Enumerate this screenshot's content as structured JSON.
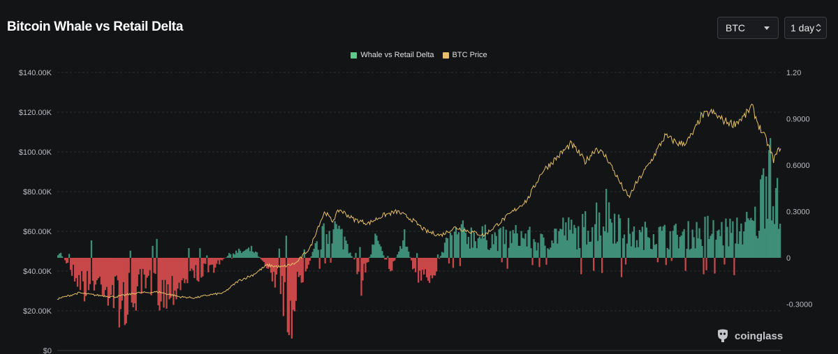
{
  "header": {
    "title": "Bitcoin Whale vs Retail Delta"
  },
  "controls": {
    "coin_select": {
      "value": "BTC"
    },
    "interval_select": {
      "value": "1 day"
    }
  },
  "legend": [
    {
      "label": "Whale vs Retail Delta",
      "color": "#5ec98a"
    },
    {
      "label": "BTC Price",
      "color": "#e6c068"
    }
  ],
  "watermark": {
    "text": "coinglass",
    "icon": "coinglass-logo-icon"
  },
  "colors": {
    "positive_bar": "#3f8f78",
    "negative_bar": "#c8484a",
    "price_line": "#e6c068",
    "grid": "#2c2e32"
  },
  "chart_data": {
    "type": "bar",
    "left_axis": {
      "ticks": [
        "$0",
        "$20.00K",
        "$40.00K",
        "$60.00K",
        "$80.00K",
        "$100.00K",
        "$120.00K",
        "$140.00K"
      ],
      "values": [
        0,
        20000,
        40000,
        60000,
        80000,
        100000,
        120000,
        140000
      ],
      "range": [
        0,
        140000
      ]
    },
    "right_axis": {
      "ticks": [
        "-0.3000",
        "0",
        "0.3000",
        "0.6000",
        "0.9000",
        "1.20"
      ],
      "values": [
        -0.3,
        0,
        0.3,
        0.6,
        0.9,
        1.2
      ],
      "range": [
        -0.6,
        1.2
      ]
    },
    "grid": true,
    "legend_placement": "top-center",
    "series": [
      {
        "name": "Whale vs Retail Delta",
        "type": "bar",
        "axis": "right",
        "keypoints": [
          [
            0,
            0.05
          ],
          [
            0.02,
            -0.08
          ],
          [
            0.04,
            -0.2
          ],
          [
            0.06,
            -0.15
          ],
          [
            0.09,
            -0.3
          ],
          [
            0.12,
            -0.18
          ],
          [
            0.15,
            -0.22
          ],
          [
            0.18,
            -0.12
          ],
          [
            0.21,
            -0.08
          ],
          [
            0.24,
            0.03
          ],
          [
            0.27,
            0.05
          ],
          [
            0.29,
            -0.05
          ],
          [
            0.31,
            -0.2
          ],
          [
            0.32,
            -0.38
          ],
          [
            0.34,
            -0.1
          ],
          [
            0.36,
            0.1
          ],
          [
            0.38,
            0.2
          ],
          [
            0.4,
            0.1
          ],
          [
            0.42,
            -0.15
          ],
          [
            0.44,
            0.12
          ],
          [
            0.46,
            -0.08
          ],
          [
            0.48,
            0.12
          ],
          [
            0.5,
            -0.18
          ],
          [
            0.52,
            -0.1
          ],
          [
            0.54,
            0.12
          ],
          [
            0.56,
            0.15
          ],
          [
            0.58,
            0.14
          ],
          [
            0.61,
            0.12
          ],
          [
            0.64,
            0.14
          ],
          [
            0.67,
            0.1
          ],
          [
            0.7,
            0.18
          ],
          [
            0.72,
            0.15
          ],
          [
            0.74,
            0.24
          ],
          [
            0.76,
            0.3
          ],
          [
            0.78,
            0.2
          ],
          [
            0.8,
            0.12
          ],
          [
            0.82,
            0.16
          ],
          [
            0.84,
            0.14
          ],
          [
            0.86,
            0.14
          ],
          [
            0.88,
            0.15
          ],
          [
            0.9,
            0.18
          ],
          [
            0.92,
            0.16
          ],
          [
            0.94,
            0.18
          ],
          [
            0.96,
            0.2
          ],
          [
            0.97,
            0.24
          ],
          [
            0.985,
            0.75
          ],
          [
            0.995,
            0.35
          ],
          [
            1.0,
            0.25
          ]
        ]
      },
      {
        "name": "BTC Price",
        "type": "line",
        "axis": "left",
        "keypoints": [
          [
            0,
            26000
          ],
          [
            0.03,
            29000
          ],
          [
            0.05,
            28000
          ],
          [
            0.08,
            27000
          ],
          [
            0.11,
            29000
          ],
          [
            0.14,
            29500
          ],
          [
            0.17,
            27000
          ],
          [
            0.19,
            26500
          ],
          [
            0.21,
            28000
          ],
          [
            0.23,
            29000
          ],
          [
            0.25,
            35000
          ],
          [
            0.27,
            38000
          ],
          [
            0.29,
            43000
          ],
          [
            0.31,
            42000
          ],
          [
            0.33,
            44000
          ],
          [
            0.35,
            52000
          ],
          [
            0.36,
            62000
          ],
          [
            0.37,
            70000
          ],
          [
            0.38,
            65000
          ],
          [
            0.39,
            71000
          ],
          [
            0.41,
            66000
          ],
          [
            0.43,
            64000
          ],
          [
            0.45,
            68000
          ],
          [
            0.47,
            70000
          ],
          [
            0.49,
            66000
          ],
          [
            0.51,
            60000
          ],
          [
            0.53,
            58000
          ],
          [
            0.55,
            62000
          ],
          [
            0.57,
            60000
          ],
          [
            0.59,
            58000
          ],
          [
            0.61,
            64000
          ],
          [
            0.63,
            70000
          ],
          [
            0.65,
            76000
          ],
          [
            0.67,
            90000
          ],
          [
            0.69,
            97000
          ],
          [
            0.71,
            104000
          ],
          [
            0.72,
            100000
          ],
          [
            0.73,
            95000
          ],
          [
            0.745,
            102000
          ],
          [
            0.76,
            97000
          ],
          [
            0.78,
            83000
          ],
          [
            0.79,
            77000
          ],
          [
            0.8,
            84000
          ],
          [
            0.82,
            95000
          ],
          [
            0.84,
            108000
          ],
          [
            0.85,
            106000
          ],
          [
            0.86,
            104000
          ],
          [
            0.87,
            105000
          ],
          [
            0.88,
            110000
          ],
          [
            0.89,
            118000
          ],
          [
            0.905,
            120000
          ],
          [
            0.92,
            116000
          ],
          [
            0.935,
            114000
          ],
          [
            0.95,
            118000
          ],
          [
            0.96,
            123000
          ],
          [
            0.97,
            113000
          ],
          [
            0.98,
            106000
          ],
          [
            0.99,
            96000
          ],
          [
            1.0,
            103000
          ]
        ]
      }
    ]
  }
}
